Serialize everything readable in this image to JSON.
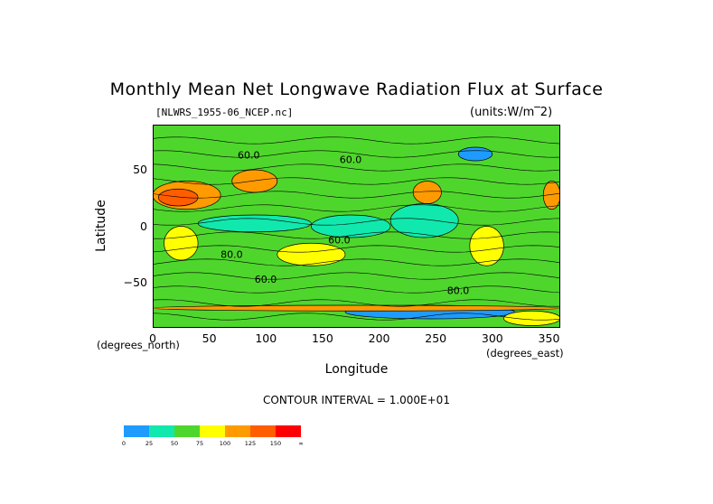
{
  "chart_data": {
    "type": "heatmap",
    "title": "Monthly Mean Net Longwave Radiation Flux at Surface",
    "file_label": "[NLWRS_1955-06_NCEP.nc]",
    "units_label": "(units:W/m^2)",
    "xlabel": "Longitude",
    "ylabel": "Latitude",
    "x_unit_label": "(degrees_east)",
    "y_unit_label": "(degrees_north)",
    "xlim": [
      0,
      360
    ],
    "ylim": [
      -90,
      90
    ],
    "x_ticks": [
      "0",
      "50",
      "100",
      "150",
      "200",
      "250",
      "300",
      "350"
    ],
    "x_tick_values": [
      0,
      50,
      100,
      150,
      200,
      250,
      300,
      350
    ],
    "y_ticks": [
      "50",
      "0",
      "-50"
    ],
    "y_tick_values": [
      50,
      0,
      -50
    ],
    "contour_interval_label": "CONTOUR INTERVAL = 1.000E+01",
    "contour_labels": [
      {
        "text": "60.0",
        "lon": 165,
        "lat": 56
      },
      {
        "text": "60.0",
        "lon": 75,
        "lat": 60
      },
      {
        "text": "60.0",
        "lon": 155,
        "lat": -15
      },
      {
        "text": "80.0",
        "lon": 60,
        "lat": -28
      },
      {
        "text": "60.0",
        "lon": 90,
        "lat": -50
      },
      {
        "text": "80.0",
        "lon": 260,
        "lat": -60
      }
    ],
    "colorbar": {
      "levels": [
        "0",
        "25",
        "50",
        "75",
        "100",
        "125",
        "150",
        "∞"
      ],
      "colors": [
        "#1e9bff",
        "#11e8ae",
        "#4fd62d",
        "#ffff00",
        "#ff9b00",
        "#ff5d00",
        "#ff0000"
      ]
    },
    "regions": [
      {
        "lon": [
          0,
          360
        ],
        "lat": [
          -90,
          90
        ],
        "value": 55
      },
      {
        "lon": [
          0,
          60
        ],
        "lat": [
          15,
          40
        ],
        "value": 120
      },
      {
        "lon": [
          5,
          40
        ],
        "lat": [
          18,
          33
        ],
        "value": 140
      },
      {
        "lon": [
          70,
          110
        ],
        "lat": [
          30,
          50
        ],
        "value": 115
      },
      {
        "lon": [
          230,
          255
        ],
        "lat": [
          20,
          40
        ],
        "value": 115
      },
      {
        "lon": [
          345,
          360
        ],
        "lat": [
          15,
          40
        ],
        "value": 120
      },
      {
        "lon": [
          10,
          40
        ],
        "lat": [
          -30,
          0
        ],
        "value": 85
      },
      {
        "lon": [
          110,
          170
        ],
        "lat": [
          -35,
          -15
        ],
        "value": 80
      },
      {
        "lon": [
          140,
          210
        ],
        "lat": [
          -10,
          10
        ],
        "value": 40
      },
      {
        "lon": [
          210,
          270
        ],
        "lat": [
          -10,
          20
        ],
        "value": 45
      },
      {
        "lon": [
          40,
          140
        ],
        "lat": [
          -5,
          10
        ],
        "value": 45
      },
      {
        "lon": [
          280,
          310
        ],
        "lat": [
          -35,
          0
        ],
        "value": 85
      },
      {
        "lon": [
          270,
          300
        ],
        "lat": [
          58,
          70
        ],
        "value": 20
      },
      {
        "lon": [
          170,
          320
        ],
        "lat": [
          -82,
          -70
        ],
        "value": 20
      },
      {
        "lon": [
          0,
          360
        ],
        "lat": [
          -75,
          -70
        ],
        "value": 110
      },
      {
        "lon": [
          310,
          360
        ],
        "lat": [
          -88,
          -75
        ],
        "value": 85
      }
    ]
  }
}
